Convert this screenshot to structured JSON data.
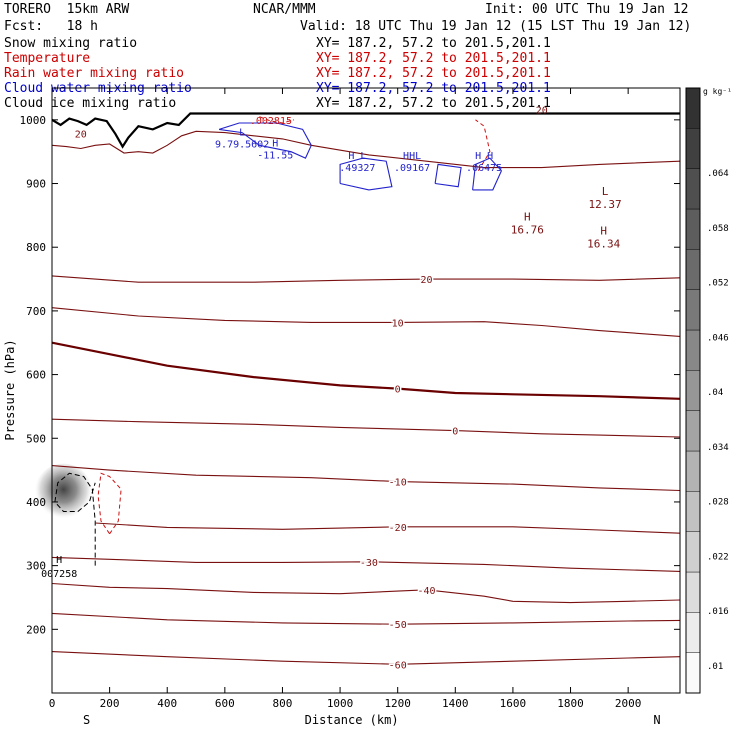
{
  "header": {
    "model": "TORERO  15km ARW",
    "org": "NCAR/MMM",
    "init": "Init: 00 UTC Thu 19 Jan 12",
    "fcst": "Fcst:   18 h",
    "valid": "Valid: 18 UTC Thu 19 Jan 12 (15 LST Thu 19 Jan 12)"
  },
  "legend": [
    {
      "label": "Snow mixing ratio",
      "xy": "XY= 187.2, 57.2 to 201.5,201.1",
      "color": "#000000"
    },
    {
      "label": "Temperature",
      "xy": "XY= 187.2, 57.2 to 201.5,201.1",
      "color": "#cc0000"
    },
    {
      "label": "Rain water mixing ratio",
      "xy": "XY= 187.2, 57.2 to 201.5,201.1",
      "color": "#cc0000"
    },
    {
      "label": "Cloud water mixing ratio",
      "xy": "XY= 187.2, 57.2 to 201.5,201.1",
      "color": "#0000cc"
    },
    {
      "label": "Cloud ice mixing ratio",
      "xy": "XY= 187.2, 57.2 to 201.5,201.1",
      "color": "#000000"
    }
  ],
  "colors": {
    "temperature": "#7a1010",
    "zero_isotherm": "#6a0000",
    "cloud_water": "#2222cc",
    "rain": "#cc1111",
    "terrain": "#000000"
  },
  "chart_data": {
    "type": "cross-section",
    "xlabel": "Distance (km)",
    "ylabel": "Pressure (hPa)",
    "xlim": [
      0,
      2180
    ],
    "ylim": [
      1050,
      100
    ],
    "x_ticks": [
      0,
      200,
      400,
      600,
      800,
      1000,
      1200,
      1400,
      1600,
      1800,
      2000
    ],
    "y_ticks": [
      200,
      300,
      400,
      500,
      600,
      700,
      800,
      900,
      1000
    ],
    "x_end_labels": {
      "left": "S",
      "right": "N"
    },
    "colorbar": {
      "units": "g kg⁻¹",
      "ticks": [
        ".01",
        ".016",
        ".022",
        ".028",
        ".034",
        ".04",
        ".046",
        ".052",
        ".058",
        ".064"
      ]
    },
    "isotherms": [
      {
        "t": -60,
        "points": [
          [
            0,
            165
          ],
          [
            400,
            157
          ],
          [
            800,
            150
          ],
          [
            1200,
            145
          ],
          [
            1600,
            150
          ],
          [
            2000,
            155
          ],
          [
            2180,
            157
          ]
        ]
      },
      {
        "t": -50,
        "points": [
          [
            0,
            225
          ],
          [
            400,
            215
          ],
          [
            800,
            210
          ],
          [
            1200,
            208
          ],
          [
            1600,
            210
          ],
          [
            2000,
            213
          ],
          [
            2180,
            214
          ]
        ]
      },
      {
        "t": -40,
        "points": [
          [
            0,
            272
          ],
          [
            200,
            266
          ],
          [
            400,
            264
          ],
          [
            700,
            258
          ],
          [
            1000,
            256
          ],
          [
            1200,
            260
          ],
          [
            1300,
            262
          ],
          [
            1500,
            252
          ],
          [
            1600,
            244
          ],
          [
            1800,
            242
          ],
          [
            2000,
            244
          ],
          [
            2180,
            246
          ]
        ]
      },
      {
        "t": -30,
        "points": [
          [
            0,
            313
          ],
          [
            200,
            310
          ],
          [
            500,
            305
          ],
          [
            800,
            305
          ],
          [
            1100,
            306
          ],
          [
            1500,
            302
          ],
          [
            1800,
            296
          ],
          [
            2180,
            291
          ]
        ]
      },
      {
        "t": -20,
        "points": [
          [
            150,
            367
          ],
          [
            400,
            360
          ],
          [
            800,
            357
          ],
          [
            1200,
            361
          ],
          [
            1600,
            361
          ],
          [
            1900,
            356
          ],
          [
            2180,
            351
          ]
        ]
      },
      {
        "t": -10,
        "points": [
          [
            0,
            457
          ],
          [
            200,
            450
          ],
          [
            500,
            442
          ],
          [
            900,
            438
          ],
          [
            1200,
            432
          ],
          [
            1600,
            428
          ],
          [
            1900,
            422
          ],
          [
            2180,
            418
          ]
        ]
      },
      {
        "t": 0,
        "points": [
          [
            0,
            530
          ],
          [
            300,
            526
          ],
          [
            700,
            522
          ],
          [
            1000,
            517
          ],
          [
            1400,
            512
          ],
          [
            1700,
            507
          ],
          [
            1900,
            505
          ],
          [
            2180,
            502
          ]
        ]
      },
      {
        "t": 0,
        "points": [
          [
            0,
            650
          ],
          [
            200,
            632
          ],
          [
            400,
            614
          ],
          [
            700,
            596
          ],
          [
            1000,
            583
          ],
          [
            1200,
            578
          ],
          [
            1400,
            571
          ],
          [
            1600,
            569
          ],
          [
            1900,
            566
          ],
          [
            2180,
            562
          ]
        ]
      },
      {
        "t": 10,
        "points": [
          [
            0,
            705
          ],
          [
            300,
            692
          ],
          [
            600,
            685
          ],
          [
            900,
            682
          ],
          [
            1200,
            682
          ],
          [
            1500,
            683
          ],
          [
            1700,
            677
          ],
          [
            1900,
            669
          ],
          [
            2180,
            660
          ]
        ]
      },
      {
        "t": 20,
        "points": [
          [
            0,
            755
          ],
          [
            300,
            745
          ],
          [
            700,
            745
          ],
          [
            1000,
            748
          ],
          [
            1300,
            750
          ],
          [
            1600,
            750
          ],
          [
            1900,
            748
          ],
          [
            2180,
            752
          ]
        ]
      }
    ],
    "warm_cells": [
      {
        "label": "H",
        "value": "16.76",
        "x": 1650,
        "p": 842
      },
      {
        "label": "H",
        "value": "16.34",
        "x": 1915,
        "p": 820
      },
      {
        "label": "L",
        "value": "12.37",
        "x": 1920,
        "p": 882
      }
    ],
    "snow_max": {
      "label": "H",
      "value": "007258",
      "x": 25,
      "p": 285
    },
    "cloud_water_labels": [
      {
        "label": "L",
        "value": "9.79.5602",
        "x": 660,
        "p": 972
      },
      {
        "label": "H",
        "value": "-11.55",
        "x": 775,
        "p": 955
      },
      {
        "label": "H L",
        "value": ".49327",
        "x": 1060,
        "p": 935
      },
      {
        "label": "HHL",
        "value": ".09167",
        "x": 1250,
        "p": 935
      },
      {
        "label": "H H",
        "value": ".06475",
        "x": 1500,
        "p": 935
      }
    ],
    "rain_label": {
      "value": ".002815",
      "x": 760,
      "p": 1000
    },
    "surface_temp_labels": [
      {
        "value": "20",
        "x": 100,
        "p": 972
      },
      {
        "value": "20",
        "x": 1700,
        "p": 1010
      }
    ],
    "terrain": [
      [
        0,
        1000
      ],
      [
        30,
        992
      ],
      [
        60,
        1002
      ],
      [
        90,
        998
      ],
      [
        120,
        992
      ],
      [
        150,
        1002
      ],
      [
        190,
        998
      ],
      [
        220,
        978
      ],
      [
        245,
        958
      ],
      [
        265,
        972
      ],
      [
        300,
        990
      ],
      [
        350,
        985
      ],
      [
        400,
        995
      ],
      [
        440,
        992
      ],
      [
        480,
        1010
      ],
      [
        2180,
        1010
      ]
    ],
    "upper_isoline": [
      [
        0,
        960
      ],
      [
        50,
        958
      ],
      [
        100,
        955
      ],
      [
        150,
        960
      ],
      [
        200,
        962
      ],
      [
        250,
        948
      ],
      [
        300,
        950
      ],
      [
        350,
        948
      ],
      [
        400,
        960
      ],
      [
        450,
        975
      ],
      [
        500,
        982
      ],
      [
        600,
        980
      ],
      [
        700,
        975
      ],
      [
        800,
        970
      ],
      [
        900,
        960
      ],
      [
        1100,
        945
      ],
      [
        1300,
        935
      ],
      [
        1500,
        925
      ],
      [
        1700,
        925
      ],
      [
        1900,
        930
      ],
      [
        2180,
        935
      ]
    ]
  }
}
